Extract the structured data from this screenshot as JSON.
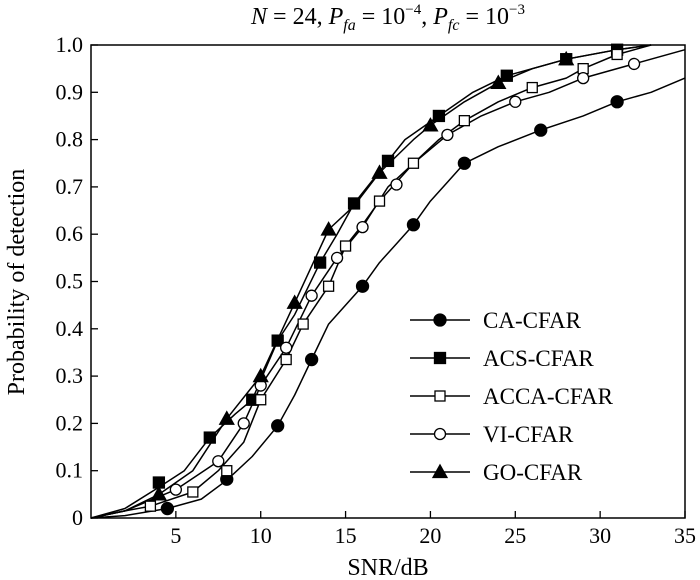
{
  "chart_data": {
    "type": "line",
    "title": {
      "n_symbol": "N",
      "n_value": " = 24, ",
      "pfa_symbol": "P",
      "pfa_sub": "fa",
      "pfa_eq": " = 10",
      "pfa_exp": "−4",
      "sep": ", ",
      "pfc_symbol": "P",
      "pfc_sub": "fc",
      "pfc_eq": " = 10",
      "pfc_exp": "−3"
    },
    "xlabel": "SNR/dB",
    "ylabel": "Probability of detection",
    "xlim": [
      0,
      35
    ],
    "ylim": [
      0,
      1
    ],
    "xticks": [
      5,
      10,
      15,
      20,
      25,
      30,
      35
    ],
    "yticks": [
      0,
      0.1,
      0.2,
      0.3,
      0.4,
      0.5,
      0.6,
      0.7,
      0.8,
      0.9,
      1.0
    ],
    "ytick_labels": [
      "0",
      "0.1",
      "0.2",
      "0.3",
      "0.4",
      "0.5",
      "0.6",
      "0.7",
      "0.8",
      "0.9",
      "1.0"
    ],
    "grid": false,
    "legend_position": "bottom-right",
    "series": [
      {
        "name": "CA-CFAR",
        "marker": "circle-filled",
        "line": [
          [
            0,
            0
          ],
          [
            2,
            0.005
          ],
          [
            4.5,
            0.02
          ],
          [
            6.5,
            0.04
          ],
          [
            8,
            0.08
          ],
          [
            9.5,
            0.13
          ],
          [
            11,
            0.195
          ],
          [
            12,
            0.26
          ],
          [
            13,
            0.335
          ],
          [
            14,
            0.41
          ],
          [
            15,
            0.45
          ],
          [
            16,
            0.49
          ],
          [
            17,
            0.54
          ],
          [
            18,
            0.58
          ],
          [
            19,
            0.62
          ],
          [
            20,
            0.67
          ],
          [
            21,
            0.71
          ],
          [
            22,
            0.75
          ],
          [
            24,
            0.785
          ],
          [
            26.5,
            0.82
          ],
          [
            29,
            0.85
          ],
          [
            31,
            0.88
          ],
          [
            33,
            0.9
          ],
          [
            35,
            0.93
          ]
        ],
        "points": [
          [
            4.5,
            0.02
          ],
          [
            8,
            0.082
          ],
          [
            11,
            0.195
          ],
          [
            13,
            0.335
          ],
          [
            16,
            0.49
          ],
          [
            19,
            0.62
          ],
          [
            22,
            0.75
          ],
          [
            26.5,
            0.82
          ],
          [
            31,
            0.88
          ]
        ]
      },
      {
        "name": "ACS-CFAR",
        "marker": "square-filled",
        "line": [
          [
            0,
            0
          ],
          [
            2,
            0.02
          ],
          [
            4,
            0.065
          ],
          [
            5.5,
            0.1
          ],
          [
            7,
            0.17
          ],
          [
            8.5,
            0.22
          ],
          [
            9.5,
            0.25
          ],
          [
            11,
            0.375
          ],
          [
            12,
            0.43
          ],
          [
            13.5,
            0.54
          ],
          [
            14.5,
            0.6
          ],
          [
            15.5,
            0.665
          ],
          [
            16.5,
            0.71
          ],
          [
            17.5,
            0.755
          ],
          [
            18.5,
            0.8
          ],
          [
            20.5,
            0.85
          ],
          [
            22.5,
            0.9
          ],
          [
            24.5,
            0.935
          ],
          [
            26.5,
            0.955
          ],
          [
            28,
            0.97
          ],
          [
            31,
            0.99
          ],
          [
            33,
            1.0
          ]
        ],
        "points": [
          [
            4,
            0.075
          ],
          [
            7,
            0.17
          ],
          [
            9.5,
            0.25
          ],
          [
            11,
            0.375
          ],
          [
            13.5,
            0.54
          ],
          [
            15.5,
            0.665
          ],
          [
            17.5,
            0.755
          ],
          [
            20.5,
            0.85
          ],
          [
            24.5,
            0.935
          ],
          [
            28,
            0.97
          ],
          [
            31,
            0.99
          ]
        ]
      },
      {
        "name": "ACCA-CFAR",
        "marker": "square-open",
        "line": [
          [
            0,
            0
          ],
          [
            2,
            0.015
          ],
          [
            3.5,
            0.025
          ],
          [
            6,
            0.055
          ],
          [
            7.5,
            0.1
          ],
          [
            9,
            0.16
          ],
          [
            10,
            0.25
          ],
          [
            11.5,
            0.335
          ],
          [
            12.5,
            0.41
          ],
          [
            14,
            0.49
          ],
          [
            15,
            0.575
          ],
          [
            16,
            0.62
          ],
          [
            17,
            0.67
          ],
          [
            18,
            0.71
          ],
          [
            19,
            0.75
          ],
          [
            20.5,
            0.8
          ],
          [
            22,
            0.84
          ],
          [
            24,
            0.88
          ],
          [
            26,
            0.91
          ],
          [
            28,
            0.93
          ],
          [
            29,
            0.95
          ],
          [
            31,
            0.98
          ],
          [
            33,
            1.0
          ]
        ],
        "points": [
          [
            3.5,
            0.025
          ],
          [
            6,
            0.055
          ],
          [
            8,
            0.1
          ],
          [
            10,
            0.25
          ],
          [
            11.5,
            0.335
          ],
          [
            12.5,
            0.41
          ],
          [
            14,
            0.49
          ],
          [
            15,
            0.575
          ],
          [
            17,
            0.67
          ],
          [
            19,
            0.75
          ],
          [
            22,
            0.84
          ],
          [
            26,
            0.91
          ],
          [
            29,
            0.95
          ],
          [
            31,
            0.98
          ]
        ]
      },
      {
        "name": "VI-CFAR",
        "marker": "circle-open",
        "line": [
          [
            0,
            0
          ],
          [
            2,
            0.015
          ],
          [
            5,
            0.06
          ],
          [
            7.5,
            0.12
          ],
          [
            9,
            0.2
          ],
          [
            10,
            0.28
          ],
          [
            11.5,
            0.36
          ],
          [
            13,
            0.47
          ],
          [
            14.5,
            0.55
          ],
          [
            16,
            0.615
          ],
          [
            17.5,
            0.7
          ],
          [
            19,
            0.75
          ],
          [
            21,
            0.81
          ],
          [
            23,
            0.85
          ],
          [
            25,
            0.88
          ],
          [
            27,
            0.9
          ],
          [
            29,
            0.93
          ],
          [
            30.5,
            0.945
          ],
          [
            32,
            0.96
          ],
          [
            35,
            0.99
          ]
        ],
        "points": [
          [
            5,
            0.06
          ],
          [
            7.5,
            0.12
          ],
          [
            9,
            0.2
          ],
          [
            10,
            0.28
          ],
          [
            11.5,
            0.36
          ],
          [
            13,
            0.47
          ],
          [
            14.5,
            0.55
          ],
          [
            16,
            0.615
          ],
          [
            18,
            0.705
          ],
          [
            21,
            0.81
          ],
          [
            25,
            0.88
          ],
          [
            29,
            0.93
          ],
          [
            32,
            0.96
          ]
        ]
      },
      {
        "name": "GO-CFAR",
        "marker": "triangle-filled",
        "line": [
          [
            0,
            0
          ],
          [
            2,
            0.015
          ],
          [
            4,
            0.05
          ],
          [
            6,
            0.1
          ],
          [
            8,
            0.21
          ],
          [
            10,
            0.3
          ],
          [
            12,
            0.455
          ],
          [
            14,
            0.61
          ],
          [
            15.5,
            0.66
          ],
          [
            17,
            0.73
          ],
          [
            19,
            0.8
          ],
          [
            20,
            0.83
          ],
          [
            22,
            0.88
          ],
          [
            24,
            0.92
          ],
          [
            26,
            0.95
          ],
          [
            28,
            0.97
          ],
          [
            31,
            0.99
          ],
          [
            33,
            1.0
          ]
        ],
        "points": [
          [
            4,
            0.05
          ],
          [
            8,
            0.21
          ],
          [
            10,
            0.3
          ],
          [
            12,
            0.455
          ],
          [
            14,
            0.61
          ],
          [
            17,
            0.73
          ],
          [
            20,
            0.83
          ],
          [
            24,
            0.92
          ],
          [
            28,
            0.97
          ]
        ]
      }
    ]
  }
}
